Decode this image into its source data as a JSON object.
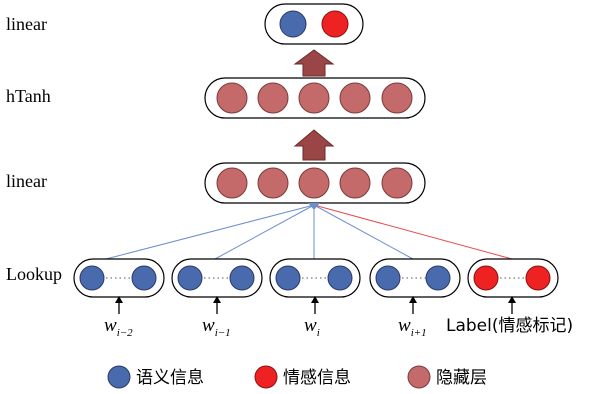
{
  "colors": {
    "semantic": "#4a6aae",
    "emotion": "#ee2222",
    "hidden": "#c46a6a",
    "arrow_fill": "#9b4646",
    "line_blue": "#6e8fcf",
    "line_red": "#e74c4c"
  },
  "layers": {
    "output_label": "linear",
    "htanh_label": "hTanh",
    "linear_label": "linear",
    "lookup_label": "Lookup"
  },
  "inputs": [
    {
      "main": "w",
      "sub": "i−2"
    },
    {
      "main": "w",
      "sub": "i−1"
    },
    {
      "main": "w",
      "sub": "i"
    },
    {
      "main": "w",
      "sub": "i+1"
    },
    {
      "main": "Label(情感标记)",
      "sub": ""
    }
  ],
  "legend": [
    {
      "label": "语义信息",
      "color": "semantic"
    },
    {
      "label": "情感信息",
      "color": "emotion"
    },
    {
      "label": "隐藏层",
      "color": "hidden"
    }
  ]
}
